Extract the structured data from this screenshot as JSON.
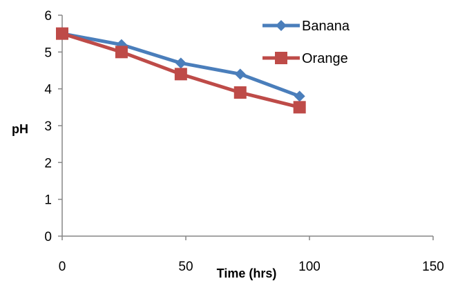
{
  "chart_data": {
    "type": "line",
    "title": "",
    "xlabel": "Time (hrs)",
    "ylabel": "pH",
    "xlim": [
      0,
      150
    ],
    "ylim": [
      0,
      6
    ],
    "xticks": [
      "0",
      "50",
      "100",
      "150"
    ],
    "yticks": [
      "0",
      "1",
      "2",
      "3",
      "4",
      "5",
      "6"
    ],
    "grid": false,
    "legend_position": "top-right",
    "series": [
      {
        "name": "Banana",
        "color": "#4a7ebb",
        "marker": "diamond",
        "x": [
          0,
          24,
          48,
          72,
          96
        ],
        "y": [
          5.5,
          5.2,
          4.7,
          4.4,
          3.8
        ]
      },
      {
        "name": "Orange",
        "color": "#be4b48",
        "marker": "square",
        "x": [
          0,
          24,
          48,
          72,
          96
        ],
        "y": [
          5.5,
          5.0,
          4.4,
          3.9,
          3.5
        ]
      }
    ]
  }
}
